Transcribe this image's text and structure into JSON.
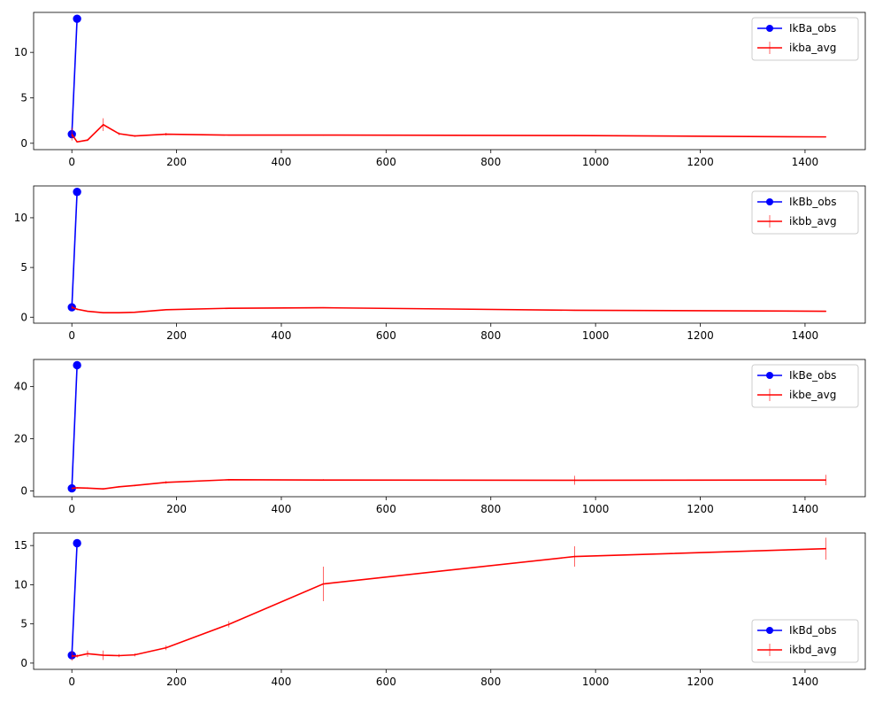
{
  "chart_data": [
    {
      "type": "line",
      "xlim": [
        -73,
        1515
      ],
      "ylim": [
        -0.7,
        14.4
      ],
      "xticks": [
        0,
        200,
        400,
        600,
        800,
        1000,
        1200,
        1400
      ],
      "yticks": [
        0,
        5,
        10
      ],
      "legend_position": "upper right",
      "series": [
        {
          "name": "IkBa_obs",
          "color": "#0000ff",
          "marker": "circle",
          "x": [
            0,
            10
          ],
          "y": [
            1.0,
            13.7
          ]
        },
        {
          "name": "ikba_avg",
          "color": "#ff0000",
          "marker": "errorbar",
          "x": [
            0,
            10,
            30,
            60,
            90,
            120,
            180,
            300,
            480,
            960,
            1440
          ],
          "y": [
            1.0,
            0.15,
            0.35,
            2.05,
            1.05,
            0.8,
            1.0,
            0.9,
            0.9,
            0.85,
            0.7
          ],
          "err": [
            0.7,
            0.05,
            0.1,
            0.7,
            0.15,
            0.1,
            0.15,
            0.05,
            0.05,
            0.05,
            0.05
          ]
        }
      ]
    },
    {
      "type": "line",
      "xlim": [
        -73,
        1515
      ],
      "ylim": [
        -0.6,
        13.2
      ],
      "xticks": [
        0,
        200,
        400,
        600,
        800,
        1000,
        1200,
        1400
      ],
      "yticks": [
        0,
        5,
        10
      ],
      "legend_position": "upper right",
      "series": [
        {
          "name": "IkBb_obs",
          "color": "#0000ff",
          "marker": "circle",
          "x": [
            0,
            10
          ],
          "y": [
            1.0,
            12.6
          ]
        },
        {
          "name": "ikbb_avg",
          "color": "#ff0000",
          "marker": "errorbar",
          "x": [
            0,
            10,
            30,
            60,
            90,
            120,
            180,
            300,
            480,
            960,
            1440
          ],
          "y": [
            1.0,
            0.8,
            0.6,
            0.45,
            0.45,
            0.5,
            0.75,
            0.9,
            0.95,
            0.7,
            0.6
          ],
          "err": [
            0.2,
            0.1,
            0.05,
            0.05,
            0.05,
            0.05,
            0.05,
            0.05,
            0.05,
            0.05,
            0.05
          ]
        }
      ]
    },
    {
      "type": "line",
      "xlim": [
        -73,
        1515
      ],
      "ylim": [
        -2.2,
        50.4
      ],
      "xticks": [
        0,
        200,
        400,
        600,
        800,
        1000,
        1200,
        1400
      ],
      "yticks": [
        0,
        20,
        40
      ],
      "legend_position": "upper right",
      "series": [
        {
          "name": "IkBe_obs",
          "color": "#0000ff",
          "marker": "circle",
          "x": [
            0,
            10
          ],
          "y": [
            1.0,
            48.2
          ]
        },
        {
          "name": "ikbe_avg",
          "color": "#ff0000",
          "marker": "errorbar",
          "x": [
            0,
            10,
            30,
            60,
            90,
            120,
            180,
            300,
            480,
            960,
            1440
          ],
          "y": [
            1.0,
            1.2,
            1.1,
            0.8,
            1.6,
            2.1,
            3.3,
            4.3,
            4.2,
            4.1,
            4.2
          ],
          "err": [
            0.3,
            0.3,
            0.3,
            0.3,
            0.3,
            0.3,
            0.5,
            0.3,
            0.3,
            1.7,
            2.0
          ]
        }
      ]
    },
    {
      "type": "line",
      "xlim": [
        -73,
        1515
      ],
      "ylim": [
        -0.8,
        16.6
      ],
      "xticks": [
        0,
        200,
        400,
        600,
        800,
        1000,
        1200,
        1400
      ],
      "yticks": [
        0,
        5,
        10,
        15
      ],
      "legend_position": "lower right",
      "series": [
        {
          "name": "IkBd_obs",
          "color": "#0000ff",
          "marker": "circle",
          "x": [
            0,
            10
          ],
          "y": [
            1.0,
            15.3
          ]
        },
        {
          "name": "ikbd_avg",
          "color": "#ff0000",
          "marker": "errorbar",
          "x": [
            0,
            10,
            30,
            60,
            90,
            120,
            180,
            300,
            480,
            960,
            1440
          ],
          "y": [
            0.9,
            0.9,
            1.2,
            1.0,
            0.95,
            1.05,
            1.95,
            4.95,
            10.1,
            13.6,
            14.6
          ],
          "err": [
            0.6,
            0.2,
            0.4,
            0.6,
            0.2,
            0.2,
            0.3,
            0.4,
            2.2,
            1.3,
            1.4
          ]
        }
      ]
    }
  ]
}
